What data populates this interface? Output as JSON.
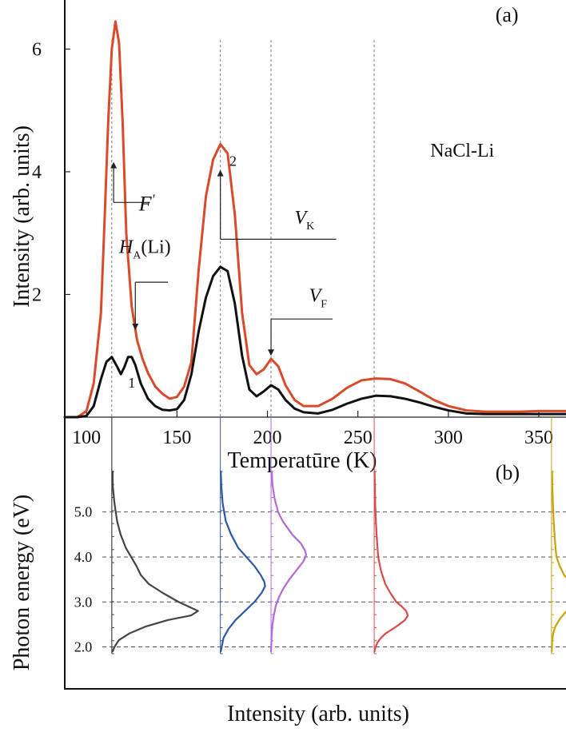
{
  "chart_data": [
    {
      "panel": "(a)",
      "type": "line",
      "xlabel": "Temperatūre (K)",
      "ylabel": "Intensity (arb. units)",
      "xlim": [
        88,
        365
      ],
      "ylim": [
        0,
        6.8
      ],
      "x_ticks": [
        100,
        150,
        200,
        250,
        300,
        350
      ],
      "y_ticks": [
        2,
        4,
        6
      ],
      "grid": false,
      "colors": {
        "series_1": "#d94a2b",
        "series_2": "#111111"
      },
      "series": [
        {
          "color": "#d94a2b",
          "x": [
            88,
            95,
            100,
            104,
            108,
            110,
            112,
            114,
            116,
            118,
            120,
            122,
            125,
            128,
            131,
            134,
            138,
            142,
            146,
            150,
            154,
            158,
            162,
            166,
            170,
            174,
            178,
            182,
            186,
            190,
            194,
            198,
            202,
            206,
            210,
            215,
            220,
            228,
            236,
            244,
            252,
            260,
            268,
            276,
            284,
            292,
            300,
            310,
            320,
            330,
            340,
            350,
            360,
            365
          ],
          "values": [
            0.0,
            0.0,
            0.1,
            0.55,
            1.7,
            3.2,
            4.8,
            6.0,
            6.45,
            6.1,
            4.8,
            3.0,
            1.8,
            1.25,
            0.95,
            0.72,
            0.5,
            0.38,
            0.3,
            0.33,
            0.5,
            0.9,
            2.4,
            3.6,
            4.2,
            4.45,
            4.3,
            3.3,
            1.7,
            0.85,
            0.7,
            0.78,
            0.95,
            0.83,
            0.52,
            0.28,
            0.18,
            0.18,
            0.3,
            0.48,
            0.6,
            0.63,
            0.62,
            0.55,
            0.42,
            0.28,
            0.18,
            0.11,
            0.09,
            0.09,
            0.09,
            0.1,
            0.1,
            0.1
          ]
        },
        {
          "color": "#111111",
          "x": [
            88,
            95,
            100,
            104,
            108,
            111,
            114,
            117,
            119,
            121,
            123,
            125,
            127,
            130,
            134,
            138,
            142,
            146,
            150,
            154,
            158,
            162,
            166,
            170,
            174,
            178,
            182,
            186,
            190,
            194,
            198,
            202,
            206,
            210,
            215,
            220,
            228,
            236,
            244,
            252,
            260,
            268,
            276,
            284,
            292,
            300,
            310,
            320,
            330,
            340,
            350,
            360,
            365
          ],
          "values": [
            0.0,
            0.0,
            0.02,
            0.18,
            0.62,
            0.9,
            0.98,
            0.82,
            0.7,
            0.82,
            0.98,
            0.98,
            0.85,
            0.55,
            0.3,
            0.18,
            0.12,
            0.11,
            0.13,
            0.28,
            0.7,
            1.4,
            1.95,
            2.3,
            2.45,
            2.38,
            1.85,
            1.0,
            0.45,
            0.34,
            0.42,
            0.52,
            0.45,
            0.28,
            0.14,
            0.08,
            0.06,
            0.12,
            0.22,
            0.3,
            0.35,
            0.34,
            0.3,
            0.24,
            0.17,
            0.11,
            0.06,
            0.05,
            0.05,
            0.05,
            0.05,
            0.05,
            0.05
          ]
        }
      ],
      "annotations": [
        {
          "text": "NaCl-Li",
          "x": 290,
          "y": 4.25
        },
        {
          "text": "(a)",
          "x": 326,
          "y": 6.45
        },
        {
          "text": "1",
          "x": 123,
          "y": 0.48
        },
        {
          "text": "2",
          "x": 179,
          "y": 4.1
        },
        {
          "text": "F",
          "prime": "′",
          "x": 129,
          "y": 3.37
        },
        {
          "main": "H",
          "sub": "A",
          "suffix": "(Li)",
          "x": 118,
          "y": 2.68
        },
        {
          "main": "V",
          "sub": "K",
          "x": 215,
          "y": 3.15
        },
        {
          "main": "V",
          "sub": "F",
          "x": 223,
          "y": 1.88
        }
      ]
    },
    {
      "panel": "(b)",
      "type": "line",
      "xlabel": "Intensity (arb. units)",
      "ylabel": "Photon energy (eV)",
      "ylim": [
        1.85,
        5.9
      ],
      "y_ticks": [
        2.0,
        3.0,
        4.0,
        5.0
      ],
      "y_tick_labels": [
        "2.0",
        "3.0",
        "4.0",
        "5.0"
      ],
      "grid": true,
      "colors": {
        "spectrum_1": "#444444",
        "spectrum_2": "#2d58a8",
        "spectrum_3": "#b36ad9",
        "spectrum_4": "#d94a4a",
        "spectrum_5": "#c9a20c"
      },
      "spectra": [
        {
          "peak_temperature": 114,
          "color": "#444444",
          "energy": [
            5.9,
            5.6,
            5.2,
            4.8,
            4.5,
            4.2,
            4.0,
            3.8,
            3.6,
            3.4,
            3.2,
            3.0,
            2.9,
            2.8,
            2.7,
            2.6,
            2.45,
            2.3,
            2.15,
            2.0,
            1.9
          ],
          "intensity": [
            0.01,
            0.01,
            0.03,
            0.06,
            0.1,
            0.16,
            0.22,
            0.28,
            0.33,
            0.42,
            0.58,
            0.76,
            0.87,
            0.98,
            0.9,
            0.64,
            0.38,
            0.2,
            0.08,
            0.03,
            0.01
          ]
        },
        {
          "peak_temperature": 174,
          "color": "#2d58a8",
          "energy": [
            5.9,
            5.6,
            5.2,
            4.8,
            4.5,
            4.2,
            4.0,
            3.8,
            3.6,
            3.45,
            3.35,
            3.2,
            3.0,
            2.8,
            2.6,
            2.4,
            2.2,
            2.0,
            1.9
          ],
          "intensity": [
            0.01,
            0.02,
            0.05,
            0.12,
            0.24,
            0.4,
            0.58,
            0.76,
            0.9,
            0.98,
            1.0,
            0.92,
            0.76,
            0.55,
            0.34,
            0.18,
            0.07,
            0.03,
            0.01
          ]
        },
        {
          "peak_temperature": 202,
          "color": "#b36ad9",
          "energy": [
            5.9,
            5.6,
            5.3,
            5.0,
            4.8,
            4.5,
            4.3,
            4.15,
            4.05,
            3.9,
            3.7,
            3.5,
            3.3,
            3.1,
            2.9,
            2.7,
            2.5,
            2.3,
            2.1,
            1.9
          ],
          "intensity": [
            0.02,
            0.04,
            0.1,
            0.2,
            0.33,
            0.6,
            0.85,
            0.96,
            1.0,
            0.92,
            0.72,
            0.52,
            0.35,
            0.22,
            0.13,
            0.08,
            0.04,
            0.02,
            0.01,
            0.0
          ]
        },
        {
          "peak_temperature": 259,
          "color": "#d94a4a",
          "energy": [
            5.9,
            5.6,
            5.2,
            4.8,
            4.4,
            4.0,
            3.7,
            3.4,
            3.2,
            3.0,
            2.9,
            2.8,
            2.7,
            2.6,
            2.5,
            2.4,
            2.3,
            2.2,
            2.1,
            2.0,
            1.9
          ],
          "intensity": [
            0.01,
            0.02,
            0.03,
            0.05,
            0.08,
            0.12,
            0.2,
            0.33,
            0.48,
            0.66,
            0.82,
            0.95,
            1.0,
            0.92,
            0.75,
            0.55,
            0.34,
            0.2,
            0.1,
            0.04,
            0.01
          ]
        },
        {
          "peak_temperature": 357,
          "color": "#c9a20c",
          "energy": [
            5.9,
            5.6,
            5.2,
            4.8,
            4.4,
            4.0,
            3.8,
            3.6,
            3.45,
            3.3,
            3.2,
            3.05,
            2.9,
            2.75,
            2.6,
            2.45,
            2.3,
            2.1,
            1.9
          ],
          "intensity": [
            0.02,
            0.03,
            0.05,
            0.08,
            0.12,
            0.18,
            0.3,
            0.46,
            0.68,
            0.92,
            1.0,
            0.92,
            0.72,
            0.48,
            0.28,
            0.14,
            0.06,
            0.02,
            0.01
          ]
        }
      ],
      "annotations": [
        {
          "text": "(b)",
          "x": 326,
          "y": 5.72
        }
      ]
    }
  ]
}
